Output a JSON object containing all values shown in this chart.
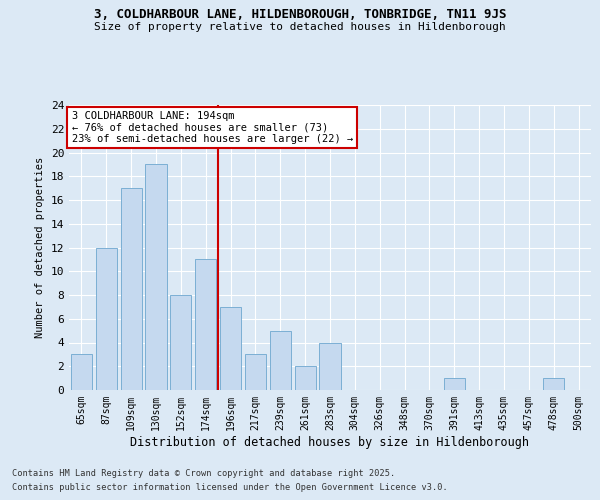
{
  "title1": "3, COLDHARBOUR LANE, HILDENBOROUGH, TONBRIDGE, TN11 9JS",
  "title2": "Size of property relative to detached houses in Hildenborough",
  "xlabel": "Distribution of detached houses by size in Hildenborough",
  "ylabel": "Number of detached properties",
  "footer1": "Contains HM Land Registry data © Crown copyright and database right 2025.",
  "footer2": "Contains public sector information licensed under the Open Government Licence v3.0.",
  "annotation_line1": "3 COLDHARBOUR LANE: 194sqm",
  "annotation_line2": "← 76% of detached houses are smaller (73)",
  "annotation_line3": "23% of semi-detached houses are larger (22) →",
  "bar_color": "#c5d9ef",
  "bar_edge_color": "#7bafd4",
  "vline_color": "#cc0000",
  "vline_x": 5.5,
  "categories": [
    "65sqm",
    "87sqm",
    "109sqm",
    "130sqm",
    "152sqm",
    "174sqm",
    "196sqm",
    "217sqm",
    "239sqm",
    "261sqm",
    "283sqm",
    "304sqm",
    "326sqm",
    "348sqm",
    "370sqm",
    "391sqm",
    "413sqm",
    "435sqm",
    "457sqm",
    "478sqm",
    "500sqm"
  ],
  "values": [
    3,
    12,
    17,
    19,
    8,
    11,
    7,
    3,
    5,
    2,
    4,
    0,
    0,
    0,
    0,
    1,
    0,
    0,
    0,
    1,
    0
  ],
  "ylim": [
    0,
    24
  ],
  "yticks": [
    0,
    2,
    4,
    6,
    8,
    10,
    12,
    14,
    16,
    18,
    20,
    22,
    24
  ],
  "background_color": "#dce9f5",
  "plot_bg_color": "#dce9f5",
  "grid_color": "#ffffff",
  "figsize": [
    6.0,
    5.0
  ],
  "dpi": 100
}
